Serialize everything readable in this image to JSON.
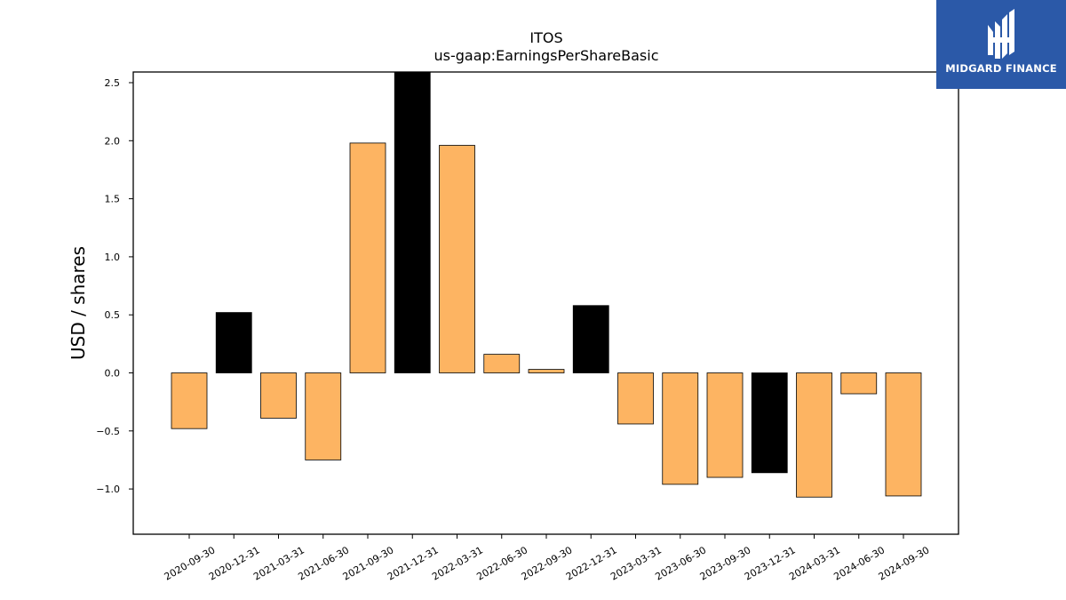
{
  "colors": {
    "bar_default": "#FDB462",
    "bar_highlight": "#000000",
    "bar_edge": "#000000",
    "logo_background": "#2B59A8",
    "logo_text": "#FFFFFF"
  },
  "logo": {
    "text": "MIDGARD FINANCE",
    "icon": "midgard-finance-logo-icon"
  },
  "chart_data": {
    "type": "bar",
    "title": "ITOS",
    "subtitle": "us-gaap:EarningsPerShareBasic",
    "xlabel": "",
    "ylabel": "USD / shares",
    "ylim": [
      -1.4,
      2.6
    ],
    "yticks": [
      -1.0,
      -0.5,
      0.0,
      0.5,
      1.0,
      1.5,
      2.0,
      2.5
    ],
    "ytick_labels": [
      "−1.0",
      "−0.5",
      "0.0",
      "0.5",
      "1.0",
      "1.5",
      "2.0",
      "2.5"
    ],
    "grid": false,
    "categories": [
      "2020-09-30",
      "2020-12-31",
      "2021-03-31",
      "2021-06-30",
      "2021-09-30",
      "2021-12-31",
      "2022-03-31",
      "2022-06-30",
      "2022-09-30",
      "2022-12-31",
      "2023-03-31",
      "2023-06-30",
      "2023-09-30",
      "2023-12-31",
      "2024-03-31",
      "2024-06-30",
      "2024-09-30"
    ],
    "values": [
      -0.48,
      0.52,
      -0.39,
      -0.75,
      1.98,
      2.6,
      1.96,
      0.16,
      0.03,
      0.58,
      -0.44,
      -0.96,
      -0.9,
      -0.86,
      -1.07,
      -0.18,
      -1.06
    ],
    "highlight": [
      false,
      true,
      false,
      false,
      false,
      true,
      false,
      false,
      false,
      true,
      false,
      false,
      false,
      true,
      false,
      false,
      false
    ]
  }
}
